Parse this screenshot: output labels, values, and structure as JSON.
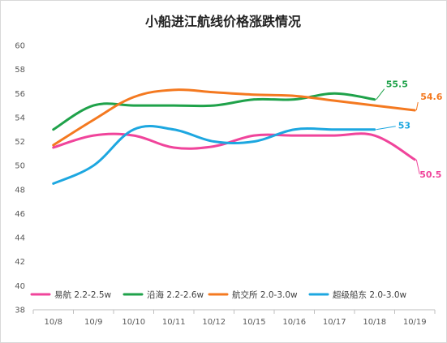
{
  "chart_data": {
    "type": "line",
    "title": "小船进江航线价格涨跌情况",
    "xlabel": "",
    "ylabel": "",
    "categories": [
      "10/8",
      "10/9",
      "10/10",
      "10/11",
      "10/12",
      "10/15",
      "10/16",
      "10/17",
      "10/18",
      "10/19"
    ],
    "ylim": [
      38,
      60
    ],
    "ytick_step": 2,
    "yticks": [
      "38",
      "40",
      "42",
      "44",
      "46",
      "48",
      "50",
      "52",
      "54",
      "56",
      "58",
      "60"
    ],
    "grid": false,
    "legend_position": "bottom-inside",
    "series": [
      {
        "name": "易航 2.2-2.5w",
        "color": "#f0449b",
        "x": [
          "10/8",
          "10/9",
          "10/10",
          "10/11",
          "10/12",
          "10/15",
          "10/16",
          "10/17",
          "10/18",
          "10/19"
        ],
        "values": [
          51.5,
          52.5,
          52.5,
          51.5,
          51.6,
          52.5,
          52.5,
          52.5,
          52.5,
          50.5
        ],
        "end_label": "50.5"
      },
      {
        "name": "沿海 2.2-2.6w",
        "color": "#1fa24a",
        "x": [
          "10/8",
          "10/9",
          "10/10",
          "10/11",
          "10/12",
          "10/15",
          "10/16",
          "10/17",
          "10/18"
        ],
        "values": [
          53,
          55,
          55,
          55,
          55,
          55.5,
          55.5,
          56,
          55.5
        ],
        "end_label": "55.5"
      },
      {
        "name": "航交所 2.0-3.0w",
        "color": "#f47920",
        "x": [
          "10/8",
          "10/9",
          "10/10",
          "10/11",
          "10/12",
          "10/15",
          "10/16",
          "10/17",
          "10/18",
          "10/19"
        ],
        "values": [
          51.7,
          53.8,
          55.7,
          56.3,
          56.1,
          55.9,
          55.8,
          55.4,
          55.0,
          54.6
        ],
        "end_label": "54.6"
      },
      {
        "name": "超级船东 2.0-3.0w",
        "color": "#1da7e0",
        "x": [
          "10/8",
          "10/9",
          "10/10",
          "10/11",
          "10/12",
          "10/15",
          "10/16",
          "10/17",
          "10/18"
        ],
        "values": [
          48.5,
          50,
          53,
          53,
          52,
          52,
          53,
          53,
          53
        ],
        "end_label": "53"
      }
    ]
  }
}
